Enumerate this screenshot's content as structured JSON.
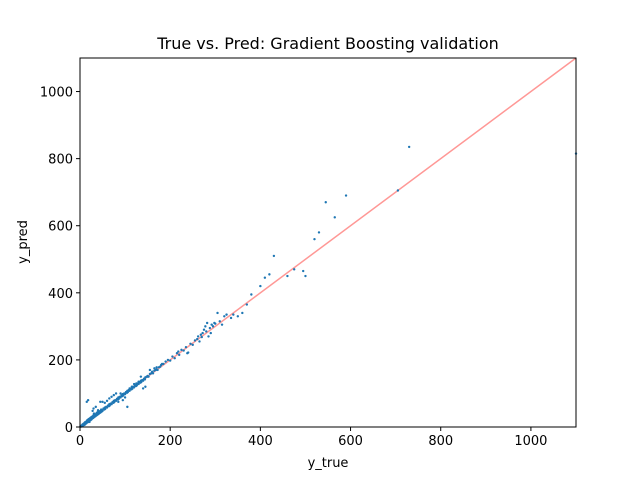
{
  "chart_data": {
    "type": "scatter",
    "title": "True vs. Pred: Gradient Boosting validation",
    "xlabel": "y_true",
    "ylabel": "y_pred",
    "xlim": [
      0,
      1100
    ],
    "ylim": [
      0,
      1100
    ],
    "xticks": [
      0,
      200,
      400,
      600,
      800,
      1000
    ],
    "yticks": [
      0,
      200,
      400,
      600,
      800,
      1000
    ],
    "grid": false,
    "reference_line": {
      "x": [
        0,
        1100
      ],
      "y": [
        0,
        1100
      ],
      "color": "#ff9896"
    },
    "point_color": "#1f77b4",
    "series": [
      {
        "points": [
          [
            1,
            2
          ],
          [
            2,
            1
          ],
          [
            3,
            4
          ],
          [
            4,
            3
          ],
          [
            5,
            6
          ],
          [
            5,
            2
          ],
          [
            6,
            8
          ],
          [
            7,
            5
          ],
          [
            8,
            10
          ],
          [
            9,
            7
          ],
          [
            10,
            12
          ],
          [
            10,
            6
          ],
          [
            11,
            14
          ],
          [
            12,
            9
          ],
          [
            13,
            15
          ],
          [
            14,
            11
          ],
          [
            15,
            18
          ],
          [
            15,
            13
          ],
          [
            16,
            20
          ],
          [
            17,
            14
          ],
          [
            18,
            22
          ],
          [
            19,
            16
          ],
          [
            20,
            24
          ],
          [
            20,
            18
          ],
          [
            21,
            15
          ],
          [
            22,
            26
          ],
          [
            23,
            20
          ],
          [
            24,
            28
          ],
          [
            25,
            22
          ],
          [
            26,
            30
          ],
          [
            27,
            25
          ],
          [
            28,
            32
          ],
          [
            29,
            27
          ],
          [
            30,
            35
          ],
          [
            30,
            28
          ],
          [
            31,
            40
          ],
          [
            32,
            30
          ],
          [
            33,
            36
          ],
          [
            34,
            32
          ],
          [
            35,
            38
          ],
          [
            36,
            34
          ],
          [
            37,
            42
          ],
          [
            38,
            36
          ],
          [
            39,
            44
          ],
          [
            40,
            38
          ],
          [
            41,
            45
          ],
          [
            42,
            40
          ],
          [
            43,
            46
          ],
          [
            44,
            42
          ],
          [
            45,
            48
          ],
          [
            46,
            44
          ],
          [
            47,
            52
          ],
          [
            48,
            46
          ],
          [
            49,
            50
          ],
          [
            50,
            48
          ],
          [
            52,
            55
          ],
          [
            54,
            52
          ],
          [
            55,
            58
          ],
          [
            56,
            54
          ],
          [
            58,
            60
          ],
          [
            60,
            58
          ],
          [
            62,
            64
          ],
          [
            64,
            62
          ],
          [
            65,
            68
          ],
          [
            66,
            64
          ],
          [
            68,
            70
          ],
          [
            70,
            68
          ],
          [
            72,
            74
          ],
          [
            74,
            72
          ],
          [
            75,
            78
          ],
          [
            76,
            74
          ],
          [
            78,
            80
          ],
          [
            80,
            78
          ],
          [
            82,
            84
          ],
          [
            84,
            82
          ],
          [
            85,
            88
          ],
          [
            86,
            84
          ],
          [
            88,
            90
          ],
          [
            90,
            88
          ],
          [
            92,
            94
          ],
          [
            94,
            92
          ],
          [
            95,
            98
          ],
          [
            96,
            94
          ],
          [
            98,
            100
          ],
          [
            100,
            98
          ],
          [
            102,
            104
          ],
          [
            104,
            102
          ],
          [
            105,
            108
          ],
          [
            106,
            104
          ],
          [
            108,
            110
          ],
          [
            110,
            108
          ],
          [
            112,
            114
          ],
          [
            114,
            112
          ],
          [
            115,
            118
          ],
          [
            116,
            114
          ],
          [
            118,
            120
          ],
          [
            120,
            118
          ],
          [
            122,
            124
          ],
          [
            124,
            122
          ],
          [
            125,
            128
          ],
          [
            126,
            124
          ],
          [
            128,
            130
          ],
          [
            130,
            128
          ],
          [
            132,
            134
          ],
          [
            134,
            132
          ],
          [
            135,
            138
          ],
          [
            136,
            134
          ],
          [
            138,
            140
          ],
          [
            140,
            138
          ],
          [
            142,
            144
          ],
          [
            144,
            142
          ],
          [
            145,
            148
          ],
          [
            148,
            150
          ],
          [
            150,
            152
          ],
          [
            152,
            150
          ],
          [
            155,
            158
          ],
          [
            158,
            160
          ],
          [
            160,
            162
          ],
          [
            162,
            160
          ],
          [
            165,
            168
          ],
          [
            168,
            170
          ],
          [
            170,
            172
          ],
          [
            172,
            170
          ],
          [
            175,
            178
          ],
          [
            178,
            180
          ],
          [
            180,
            185
          ],
          [
            182,
            188
          ],
          [
            15,
            75
          ],
          [
            18,
            80
          ],
          [
            35,
            60
          ],
          [
            40,
            50
          ],
          [
            30,
            55
          ],
          [
            28,
            48
          ],
          [
            45,
            75
          ],
          [
            50,
            75
          ],
          [
            55,
            72
          ],
          [
            60,
            78
          ],
          [
            65,
            85
          ],
          [
            70,
            90
          ],
          [
            75,
            95
          ],
          [
            80,
            100
          ],
          [
            85,
            75
          ],
          [
            90,
            100
          ],
          [
            95,
            80
          ],
          [
            100,
            88
          ],
          [
            105,
            60
          ],
          [
            110,
            115
          ],
          [
            115,
            120
          ],
          [
            120,
            128
          ],
          [
            125,
            130
          ],
          [
            130,
            135
          ],
          [
            135,
            150
          ],
          [
            140,
            115
          ],
          [
            145,
            120
          ],
          [
            150,
            150
          ],
          [
            155,
            170
          ],
          [
            160,
            165
          ],
          [
            165,
            175
          ],
          [
            170,
            178
          ],
          [
            185,
            188
          ],
          [
            190,
            195
          ],
          [
            195,
            200
          ],
          [
            200,
            198
          ],
          [
            205,
            210
          ],
          [
            210,
            205
          ],
          [
            215,
            220
          ],
          [
            218,
            225
          ],
          [
            220,
            215
          ],
          [
            225,
            230
          ],
          [
            230,
            228
          ],
          [
            235,
            238
          ],
          [
            238,
            220
          ],
          [
            240,
            222
          ],
          [
            245,
            248
          ],
          [
            250,
            245
          ],
          [
            255,
            258
          ],
          [
            260,
            262
          ],
          [
            262,
            270
          ],
          [
            265,
            255
          ],
          [
            268,
            275
          ],
          [
            270,
            268
          ],
          [
            272,
            280
          ],
          [
            275,
            290
          ],
          [
            278,
            300
          ],
          [
            280,
            285
          ],
          [
            282,
            310
          ],
          [
            285,
            270
          ],
          [
            288,
            295
          ],
          [
            290,
            280
          ],
          [
            292,
            305
          ],
          [
            295,
            300
          ],
          [
            298,
            310
          ],
          [
            300,
            308
          ],
          [
            305,
            340
          ],
          [
            310,
            315
          ],
          [
            315,
            305
          ],
          [
            320,
            330
          ],
          [
            325,
            335
          ],
          [
            335,
            325
          ],
          [
            340,
            335
          ],
          [
            350,
            330
          ],
          [
            360,
            340
          ],
          [
            370,
            365
          ],
          [
            380,
            395
          ],
          [
            400,
            420
          ],
          [
            410,
            445
          ],
          [
            420,
            455
          ],
          [
            430,
            510
          ],
          [
            460,
            450
          ],
          [
            475,
            470
          ],
          [
            495,
            465
          ],
          [
            500,
            450
          ],
          [
            520,
            560
          ],
          [
            530,
            580
          ],
          [
            545,
            670
          ],
          [
            565,
            625
          ],
          [
            590,
            690
          ],
          [
            705,
            705
          ],
          [
            730,
            835
          ],
          [
            1100,
            815
          ]
        ]
      }
    ]
  }
}
